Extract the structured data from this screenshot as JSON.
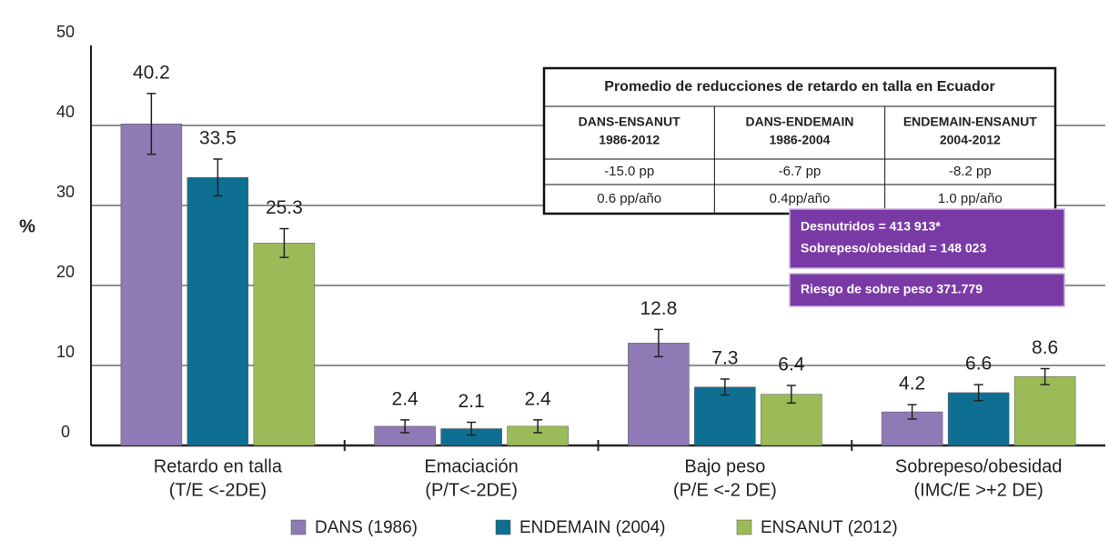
{
  "chart_data": {
    "type": "bar",
    "ylabel": "%",
    "categories": [
      [
        "Retardo en talla",
        "(T/E <-2DE)"
      ],
      [
        "Emaciación",
        "(P/T<-2DE)"
      ],
      [
        "Bajo peso",
        "(P/E <-2 DE)"
      ],
      [
        "Sobrepeso/obesidad",
        "(IMC/E >+2 DE)"
      ]
    ],
    "series": [
      {
        "name": "DANS (1986)",
        "color": "#8e7bb5",
        "values": [
          40.2,
          2.4,
          12.8,
          4.2
        ],
        "errors": [
          3.8,
          0.8,
          1.7,
          0.9
        ]
      },
      {
        "name": "ENDEMAIN (2004)",
        "color": "#0f6f93",
        "values": [
          33.5,
          2.1,
          7.3,
          6.6
        ],
        "errors": [
          2.3,
          0.8,
          1.0,
          1.0
        ]
      },
      {
        "name": "ENSANUT (2012)",
        "color": "#9bbb59",
        "values": [
          25.3,
          2.4,
          6.4,
          8.6
        ],
        "errors": [
          1.8,
          0.8,
          1.1,
          1.0
        ]
      }
    ],
    "ylim": [
      0,
      50
    ],
    "yticks": [
      0,
      10,
      20,
      30,
      40,
      50
    ],
    "grid": true,
    "legend": "bottom",
    "table": {
      "title": "Promedio de reducciones de retardo en talla en Ecuador",
      "headers": [
        [
          "DANS-ENSANUT",
          "1986-2012"
        ],
        [
          "DANS-ENDEMAIN",
          "1986-2004"
        ],
        [
          "ENDEMAIN-ENSANUT",
          "2004-2012"
        ]
      ],
      "rows": [
        [
          "-15.0 pp",
          "-6.7 pp",
          "-8.2 pp"
        ],
        [
          "0.6 pp/año",
          "0.4pp/año",
          "1.0 pp/año"
        ]
      ]
    },
    "annotations": [
      [
        "Desnutridos = 413 913*",
        "Sobrepeso/obesidad = 148 023"
      ],
      [
        "Riesgo de sobre peso  371.779"
      ]
    ]
  }
}
